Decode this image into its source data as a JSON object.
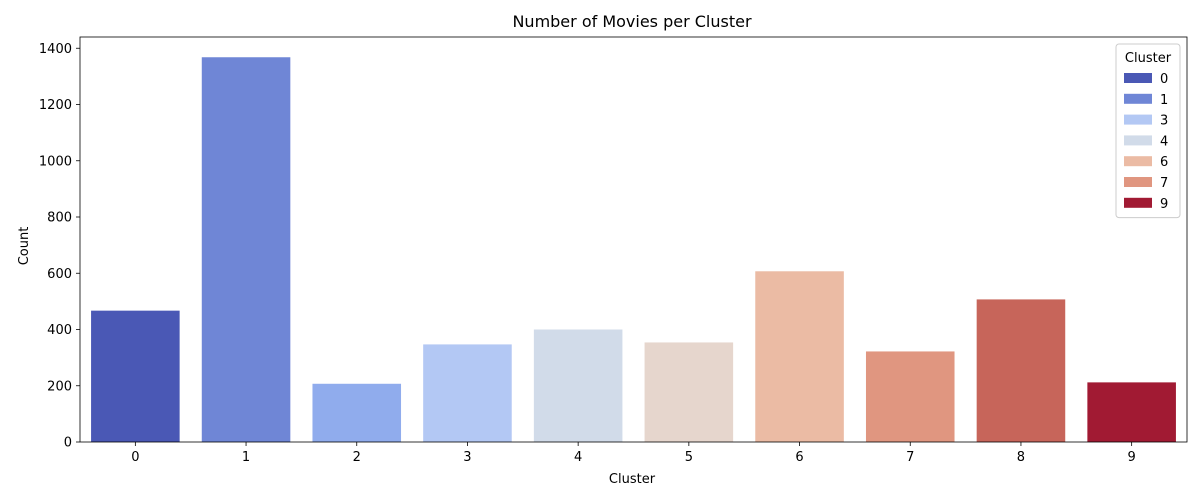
{
  "chart_data": {
    "type": "bar",
    "title": "Number of Movies per Cluster",
    "xlabel": "Cluster",
    "ylabel": "Count",
    "categories": [
      "0",
      "1",
      "2",
      "3",
      "4",
      "5",
      "6",
      "7",
      "8",
      "9"
    ],
    "values": [
      467,
      1368,
      207,
      347,
      400,
      354,
      607,
      322,
      507,
      212
    ],
    "colors": [
      "#4a58b5",
      "#6f86d6",
      "#90aced",
      "#b3c8f4",
      "#d1dbe9",
      "#e6d6cd",
      "#ebbba4",
      "#e09680",
      "#c7655a",
      "#a11a33"
    ],
    "ylim": [
      0,
      1440
    ],
    "yticks": [
      0,
      200,
      400,
      600,
      800,
      1000,
      1200,
      1400
    ],
    "grid": false,
    "legend": {
      "title": "Cluster",
      "placement": "top-right",
      "items": [
        {
          "label": "0",
          "color": "#4a58b5"
        },
        {
          "label": "1",
          "color": "#6f86d6"
        },
        {
          "label": "3",
          "color": "#b3c8f4"
        },
        {
          "label": "4",
          "color": "#d1dbe9"
        },
        {
          "label": "6",
          "color": "#ebbba4"
        },
        {
          "label": "7",
          "color": "#e09680"
        },
        {
          "label": "9",
          "color": "#a11a33"
        }
      ]
    }
  }
}
